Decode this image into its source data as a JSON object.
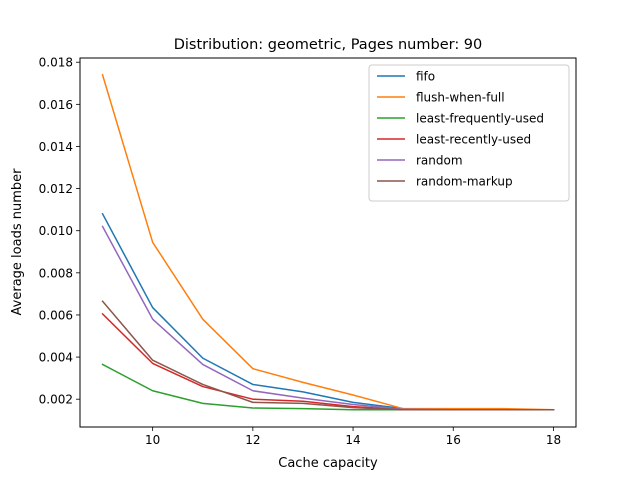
{
  "chart_data": {
    "type": "line",
    "title": "Distribution: geometric, Pages number: 90",
    "xlabel": "Cache capacity",
    "ylabel": "Average loads number",
    "xlim": [
      8.55,
      18.45
    ],
    "ylim": [
      0.00068,
      0.0182
    ],
    "xticks": [
      10,
      12,
      14,
      16,
      18
    ],
    "yticks": [
      0.002,
      0.004,
      0.006,
      0.008,
      0.01,
      0.012,
      0.014,
      0.016,
      0.018
    ],
    "xtick_labels": [
      "10",
      "12",
      "14",
      "16",
      "18"
    ],
    "ytick_labels": [
      "0.002",
      "0.004",
      "0.006",
      "0.008",
      "0.010",
      "0.012",
      "0.014",
      "0.016",
      "0.018"
    ],
    "grid": false,
    "legend_position": "upper right",
    "x": [
      9,
      10,
      11,
      12,
      13,
      14,
      15,
      16,
      17,
      18
    ],
    "series": [
      {
        "name": "fifo",
        "color": "#1f77b4",
        "values": [
          0.0108,
          0.00635,
          0.00395,
          0.0027,
          0.00235,
          0.00185,
          0.00155,
          0.0015,
          0.0015,
          0.0015
        ]
      },
      {
        "name": "flush-when-full",
        "color": "#ff7f0e",
        "values": [
          0.0174,
          0.00945,
          0.0058,
          0.00345,
          0.0028,
          0.0022,
          0.00155,
          0.00155,
          0.00155,
          0.0015
        ]
      },
      {
        "name": "least-frequently-used",
        "color": "#2ca02c",
        "values": [
          0.00365,
          0.0024,
          0.0018,
          0.00158,
          0.00155,
          0.0015,
          0.0015,
          0.0015,
          0.0015,
          0.0015
        ]
      },
      {
        "name": "least-recently-used",
        "color": "#d62728",
        "values": [
          0.00605,
          0.0037,
          0.0026,
          0.002,
          0.0019,
          0.00165,
          0.0015,
          0.0015,
          0.0015,
          0.0015
        ]
      },
      {
        "name": "random",
        "color": "#9467bd",
        "values": [
          0.0102,
          0.0058,
          0.00365,
          0.0024,
          0.00205,
          0.00175,
          0.00152,
          0.0015,
          0.0015,
          0.0015
        ]
      },
      {
        "name": "random-markup",
        "color": "#8c564b",
        "values": [
          0.00665,
          0.00385,
          0.0027,
          0.00185,
          0.0018,
          0.0016,
          0.0015,
          0.0015,
          0.0015,
          0.0015
        ]
      }
    ]
  }
}
